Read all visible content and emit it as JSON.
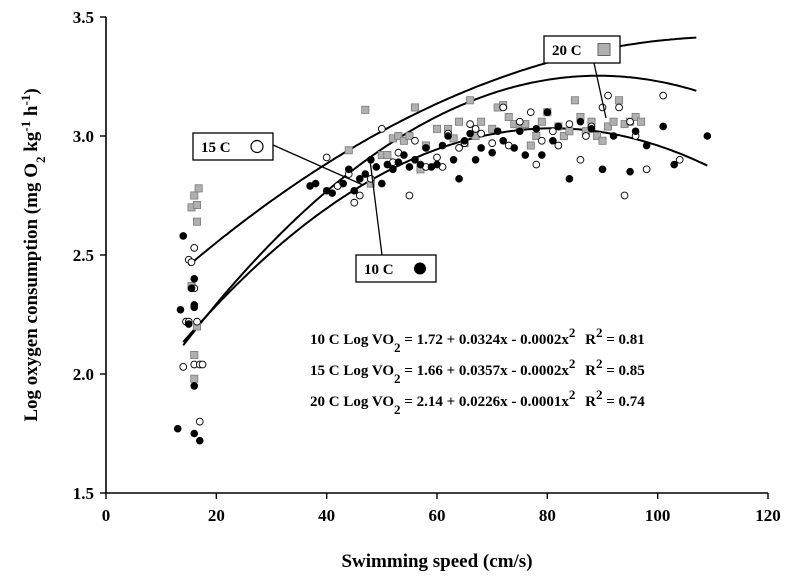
{
  "chart_data": {
    "type": "scatter",
    "title": "",
    "xlabel": "Swimming speed (cm/s)",
    "ylabel_parts": {
      "main": "Log oxygen consumption (mg O",
      "sub": "2",
      "mid": " kg",
      "sup1": "-1",
      "mid2": " h",
      "sup2": "-1",
      "end": ")"
    },
    "xlim": [
      0,
      120
    ],
    "ylim": [
      1.5,
      3.5
    ],
    "x_ticks": [
      "0",
      "20",
      "40",
      "60",
      "80",
      "100",
      "120"
    ],
    "y_ticks": [
      "1.5",
      "2.0",
      "2.5",
      "3.0",
      "3.5"
    ],
    "grid": false,
    "series": [
      {
        "name": "10 C",
        "marker": "filled-circle",
        "color": "#000000",
        "fit": {
          "a": 1.72,
          "b": 0.0324,
          "c": -0.0002
        },
        "fit_range": [
          14,
          109
        ],
        "points": [
          [
            13,
            1.77
          ],
          [
            13.5,
            2.27
          ],
          [
            14,
            2.58
          ],
          [
            15,
            2.21
          ],
          [
            16,
            2.4
          ],
          [
            16,
            2.29
          ],
          [
            16,
            2.28
          ],
          [
            16,
            1.95
          ],
          [
            16,
            1.75
          ],
          [
            17,
            1.72
          ],
          [
            15.5,
            2.36
          ],
          [
            37,
            2.79
          ],
          [
            38,
            2.8
          ],
          [
            40,
            2.77
          ],
          [
            41,
            2.76
          ],
          [
            43,
            2.8
          ],
          [
            44,
            2.86
          ],
          [
            45,
            2.77
          ],
          [
            46,
            2.82
          ],
          [
            47,
            2.84
          ],
          [
            48,
            2.9
          ],
          [
            49,
            2.87
          ],
          [
            50,
            2.8
          ],
          [
            51,
            2.88
          ],
          [
            52,
            2.86
          ],
          [
            53,
            2.89
          ],
          [
            54,
            2.92
          ],
          [
            55,
            2.87
          ],
          [
            56,
            2.9
          ],
          [
            57,
            2.88
          ],
          [
            58,
            2.95
          ],
          [
            59,
            2.87
          ],
          [
            60,
            2.88
          ],
          [
            61,
            2.96
          ],
          [
            62,
            3.0
          ],
          [
            63,
            2.9
          ],
          [
            64,
            2.82
          ],
          [
            65,
            2.98
          ],
          [
            66,
            3.01
          ],
          [
            67,
            2.9
          ],
          [
            68,
            2.95
          ],
          [
            70,
            2.93
          ],
          [
            71,
            3.02
          ],
          [
            72,
            2.98
          ],
          [
            74,
            2.95
          ],
          [
            75,
            3.02
          ],
          [
            76,
            2.92
          ],
          [
            78,
            3.03
          ],
          [
            79,
            2.92
          ],
          [
            80,
            3.1
          ],
          [
            81,
            2.98
          ],
          [
            82,
            3.04
          ],
          [
            84,
            2.82
          ],
          [
            86,
            3.06
          ],
          [
            88,
            3.03
          ],
          [
            90,
            2.86
          ],
          [
            92,
            3.0
          ],
          [
            95,
            2.85
          ],
          [
            96,
            3.02
          ],
          [
            98,
            2.96
          ],
          [
            101,
            3.04
          ],
          [
            103,
            2.88
          ],
          [
            109,
            3.0
          ]
        ]
      },
      {
        "name": "15 C",
        "marker": "open-circle",
        "color": "#000000",
        "fit": {
          "a": 1.66,
          "b": 0.0357,
          "c": -0.0002
        },
        "fit_range": [
          14,
          107
        ],
        "points": [
          [
            14,
            2.03
          ],
          [
            14.5,
            2.22
          ],
          [
            15,
            2.48
          ],
          [
            15.5,
            2.47
          ],
          [
            16,
            2.53
          ],
          [
            16,
            2.36
          ],
          [
            16,
            2.04
          ],
          [
            16.5,
            2.22
          ],
          [
            17,
            1.8
          ],
          [
            17,
            2.04
          ],
          [
            17.5,
            2.04
          ],
          [
            15,
            2.22
          ],
          [
            40,
            2.91
          ],
          [
            42,
            2.79
          ],
          [
            44,
            2.84
          ],
          [
            45,
            2.72
          ],
          [
            46,
            2.75
          ],
          [
            48,
            2.82
          ],
          [
            50,
            3.03
          ],
          [
            52,
            2.89
          ],
          [
            53,
            2.93
          ],
          [
            55,
            2.75
          ],
          [
            56,
            2.98
          ],
          [
            58,
            2.87
          ],
          [
            60,
            2.91
          ],
          [
            61,
            2.87
          ],
          [
            62,
            3.01
          ],
          [
            64,
            2.95
          ],
          [
            65,
            2.97
          ],
          [
            66,
            3.05
          ],
          [
            67,
            3.03
          ],
          [
            68,
            3.01
          ],
          [
            70,
            2.97
          ],
          [
            72,
            3.12
          ],
          [
            73,
            2.96
          ],
          [
            75,
            3.06
          ],
          [
            77,
            3.1
          ],
          [
            78,
            2.88
          ],
          [
            79,
            2.98
          ],
          [
            80,
            3.1
          ],
          [
            81,
            3.02
          ],
          [
            82,
            2.96
          ],
          [
            84,
            3.05
          ],
          [
            86,
            2.9
          ],
          [
            87,
            3.0
          ],
          [
            88,
            3.04
          ],
          [
            90,
            3.12
          ],
          [
            91,
            3.17
          ],
          [
            93,
            3.12
          ],
          [
            94,
            2.75
          ],
          [
            95,
            3.06
          ],
          [
            96,
            3.0
          ],
          [
            98,
            2.86
          ],
          [
            101,
            3.17
          ],
          [
            104,
            2.9
          ]
        ]
      },
      {
        "name": "20 C",
        "marker": "gray-square",
        "color": "#b0b0b0",
        "fit": {
          "a": 2.14,
          "b": 0.0226,
          "c": -0.0001
        },
        "fit_range": [
          15,
          107
        ],
        "points": [
          [
            15.5,
            2.7
          ],
          [
            15.5,
            2.37
          ],
          [
            16,
            2.75
          ],
          [
            16,
            2.08
          ],
          [
            16.5,
            2.71
          ],
          [
            16.5,
            2.64
          ],
          [
            16.8,
            2.78
          ],
          [
            16.5,
            2.2
          ],
          [
            16,
            1.98
          ],
          [
            44,
            2.94
          ],
          [
            47,
            3.11
          ],
          [
            48,
            2.8
          ],
          [
            50,
            2.92
          ],
          [
            51,
            2.92
          ],
          [
            52,
            2.99
          ],
          [
            53,
            3.0
          ],
          [
            54,
            2.98
          ],
          [
            55,
            3.0
          ],
          [
            56,
            3.12
          ],
          [
            57,
            2.86
          ],
          [
            58,
            2.96
          ],
          [
            60,
            3.03
          ],
          [
            62,
            3.03
          ],
          [
            63,
            2.99
          ],
          [
            64,
            3.06
          ],
          [
            65,
            2.97
          ],
          [
            66,
            3.15
          ],
          [
            67,
            3.0
          ],
          [
            68,
            3.06
          ],
          [
            70,
            3.03
          ],
          [
            71,
            3.12
          ],
          [
            72,
            3.13
          ],
          [
            73,
            3.08
          ],
          [
            74,
            3.05
          ],
          [
            75,
            3.04
          ],
          [
            76,
            3.05
          ],
          [
            77,
            2.96
          ],
          [
            78,
            3.0
          ],
          [
            79,
            3.06
          ],
          [
            80,
            3.1
          ],
          [
            82,
            3.04
          ],
          [
            83,
            3.0
          ],
          [
            84,
            3.02
          ],
          [
            85,
            3.15
          ],
          [
            86,
            3.08
          ],
          [
            87,
            3.02
          ],
          [
            88,
            3.06
          ],
          [
            89,
            3.0
          ],
          [
            90,
            2.98
          ],
          [
            91,
            3.04
          ],
          [
            92,
            3.06
          ],
          [
            93,
            3.15
          ],
          [
            94,
            3.05
          ],
          [
            95,
            3.06
          ],
          [
            96,
            3.08
          ],
          [
            97,
            3.06
          ]
        ]
      }
    ],
    "equations": [
      {
        "temp": "10 C",
        "lhs": "Log VO",
        "rhs": " = 1.72 + 0.0324x - 0.0002x",
        "r2_label": "R",
        "r2_value": " = 0.81"
      },
      {
        "temp": "15 C",
        "lhs": "Log VO",
        "rhs": " = 1.66 + 0.0357x - 0.0002x",
        "r2_label": "R",
        "r2_value": " = 0.85"
      },
      {
        "temp": "20 C",
        "lhs": "Log VO",
        "rhs": " = 2.14 + 0.0226x - 0.0001x",
        "r2_label": "R",
        "r2_value": " = 0.74"
      }
    ],
    "equation_sub": "2",
    "equation_sup": "2"
  }
}
